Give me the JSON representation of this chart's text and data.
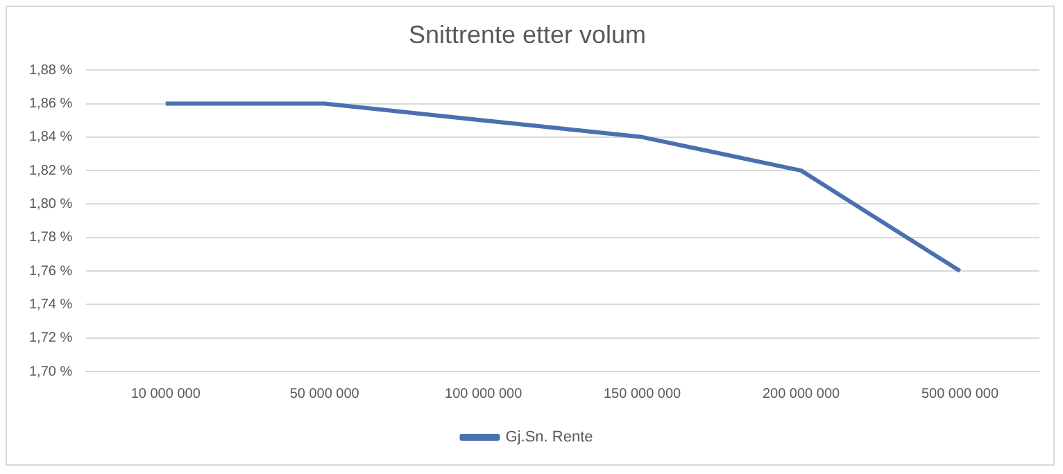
{
  "chart_data": {
    "type": "line",
    "title": "Snittrente etter volum",
    "categories": [
      "10 000 000",
      "50 000 000",
      "100 000 000",
      "150 000 000",
      "200 000 000",
      "500 000 000"
    ],
    "series": [
      {
        "name": "Gj.Sn. Rente",
        "color": "#4a70b0",
        "values": [
          1.86,
          1.86,
          1.85,
          1.84,
          1.82,
          1.76
        ]
      }
    ],
    "ylim": [
      1.7,
      1.88
    ],
    "yticks": [
      {
        "value": 1.7,
        "label": "1,70 %"
      },
      {
        "value": 1.72,
        "label": "1,72 %"
      },
      {
        "value": 1.74,
        "label": "1,74 %"
      },
      {
        "value": 1.76,
        "label": "1,76 %"
      },
      {
        "value": 1.78,
        "label": "1,78 %"
      },
      {
        "value": 1.8,
        "label": "1,80 %"
      },
      {
        "value": 1.82,
        "label": "1,82 %"
      },
      {
        "value": 1.84,
        "label": "1,84 %"
      },
      {
        "value": 1.86,
        "label": "1,86 %"
      },
      {
        "value": 1.88,
        "label": "1,88 %"
      }
    ],
    "grid": "y",
    "legend": "bottom",
    "marker": "none",
    "line_style": "solid"
  }
}
